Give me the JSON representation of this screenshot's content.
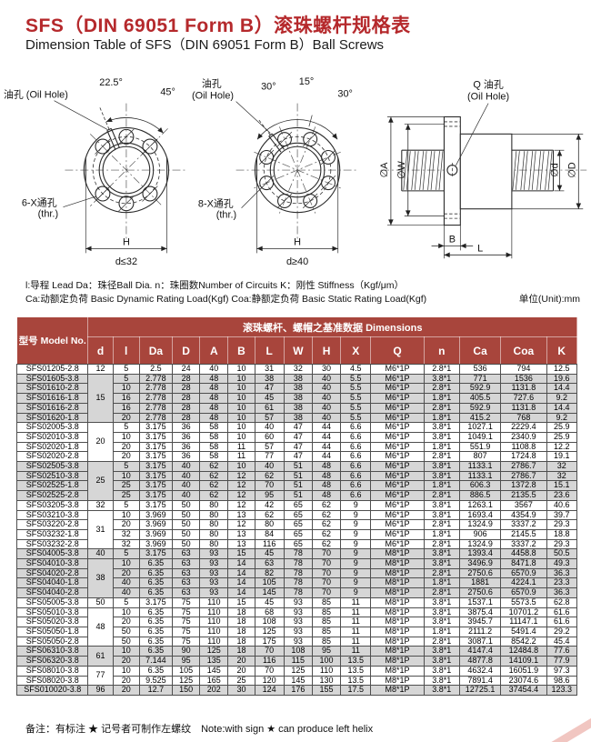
{
  "header": {
    "title_zh": "SFS（DIN 69051 Form B）滚珠螺杆规格表",
    "title_en": "Dimension Table of SFS（DIN 69051 Form B）Ball Screws"
  },
  "diagrams": {
    "d1": {
      "oil_hole": "油孔 (Oil Hole)",
      "angle_a": "22.5°",
      "angle_b": "45°",
      "holes": "6-X通孔",
      "thr": "(thr.)",
      "h": "H",
      "cond": "d≤32"
    },
    "d2": {
      "oil_hole_zh": "油孔",
      "oil_hole_en": "(Oil Hole)",
      "angle_a": "30°",
      "angle_b": "15°",
      "angle_c": "30°",
      "holes": "8-X通孔",
      "thr": "(thr.)",
      "h": "H",
      "cond": "d≥40"
    },
    "d3": {
      "oil_hole_q": "Q 油孔",
      "oil_hole_en": "(Oil Hole)",
      "dia_a": "∅A",
      "dia_w": "∅W",
      "dia_d_small": "∅d",
      "dia_d_big": "∅D",
      "b": "B",
      "l": "L"
    }
  },
  "legend": {
    "line1": "l:导程 Lead  Da：珠径Ball Dia.  n：珠圈数Number of Circuits  K：刚性 Stiffness（Kgf/μm）",
    "line2": "Ca:动额定负荷 Basic Dynamic Rating Load(Kgf)  Coa:静额定负荷 Basic Static Rating Load(Kgf)",
    "unit": "单位(Unit):mm"
  },
  "table": {
    "model_header": "型号 Model No.",
    "group_header": "滚珠螺杆、螺帽之基准数据  Dimensions",
    "columns": [
      "d",
      "l",
      "Da",
      "D",
      "A",
      "B",
      "L",
      "W",
      "H",
      "X",
      "Q",
      "n",
      "Ca",
      "Coa",
      "K"
    ],
    "rows": [
      {
        "model": "SFS01205-2.8",
        "d": "12",
        "span": 1,
        "g": 0,
        "v": [
          "5",
          "2.5",
          "24",
          "40",
          "10",
          "31",
          "32",
          "30",
          "4.5",
          "M6*1P",
          "2.8*1",
          "536",
          "794",
          "12.5"
        ]
      },
      {
        "model": "SFS01605-3.8",
        "d": "15",
        "span": 5,
        "g": 1,
        "v": [
          "5",
          "2.778",
          "28",
          "48",
          "10",
          "38",
          "38",
          "40",
          "5.5",
          "M6*1P",
          "3.8*1",
          "771",
          "1536",
          "19.6"
        ]
      },
      {
        "model": "SFS01610-2.8",
        "g": 1,
        "v": [
          "10",
          "2.778",
          "28",
          "48",
          "10",
          "47",
          "38",
          "40",
          "5.5",
          "M6*1P",
          "2.8*1",
          "592.9",
          "1131.8",
          "14.4"
        ]
      },
      {
        "model": "SFS01616-1.8",
        "g": 1,
        "v": [
          "16",
          "2.778",
          "28",
          "48",
          "10",
          "45",
          "38",
          "40",
          "5.5",
          "M6*1P",
          "1.8*1",
          "405.5",
          "727.6",
          "9.2"
        ]
      },
      {
        "model": "SFS01616-2.8",
        "g": 1,
        "v": [
          "16",
          "2.778",
          "28",
          "48",
          "10",
          "61",
          "38",
          "40",
          "5.5",
          "M6*1P",
          "2.8*1",
          "592.9",
          "1131.8",
          "14.4"
        ]
      },
      {
        "model": "SFS01620-1.8",
        "g": 1,
        "v": [
          "20",
          "2.778",
          "28",
          "48",
          "10",
          "57",
          "38",
          "40",
          "5.5",
          "M6*1P",
          "1.8*1",
          "415.2",
          "768",
          "9.2"
        ]
      },
      {
        "model": "SFS02005-3.8",
        "d": "20",
        "span": 4,
        "g": 2,
        "v": [
          "5",
          "3.175",
          "36",
          "58",
          "10",
          "40",
          "47",
          "44",
          "6.6",
          "M6*1P",
          "3.8*1",
          "1027.1",
          "2229.4",
          "25.9"
        ]
      },
      {
        "model": "SFS02010-3.8",
        "g": 2,
        "v": [
          "10",
          "3.175",
          "36",
          "58",
          "10",
          "60",
          "47",
          "44",
          "6.6",
          "M6*1P",
          "3.8*1",
          "1049.1",
          "2340.9",
          "25.9"
        ]
      },
      {
        "model": "SFS02020-1.8",
        "g": 2,
        "v": [
          "20",
          "3.175",
          "36",
          "58",
          "11",
          "57",
          "47",
          "44",
          "6.6",
          "M6*1P",
          "1.8*1",
          "551.9",
          "1108.8",
          "12.2"
        ]
      },
      {
        "model": "SFS02020-2.8",
        "g": 2,
        "v": [
          "20",
          "3.175",
          "36",
          "58",
          "11",
          "77",
          "47",
          "44",
          "6.6",
          "M6*1P",
          "2.8*1",
          "807",
          "1724.8",
          "19.1"
        ]
      },
      {
        "model": "SFS02505-3.8",
        "d": "25",
        "span": 4,
        "g": 3,
        "v": [
          "5",
          "3.175",
          "40",
          "62",
          "10",
          "40",
          "51",
          "48",
          "6.6",
          "M6*1P",
          "3.8*1",
          "1133.1",
          "2786.7",
          "32"
        ]
      },
      {
        "model": "SFS02510-3.8",
        "g": 3,
        "v": [
          "10",
          "3.175",
          "40",
          "62",
          "12",
          "62",
          "51",
          "48",
          "6.6",
          "M6*1P",
          "3.8*1",
          "1133.1",
          "2786.7",
          "32"
        ]
      },
      {
        "model": "SFS02525-1.8",
        "g": 3,
        "v": [
          "25",
          "3.175",
          "40",
          "62",
          "12",
          "70",
          "51",
          "48",
          "6.6",
          "M6*1P",
          "1.8*1",
          "606.3",
          "1372.8",
          "15.1"
        ]
      },
      {
        "model": "SFS02525-2.8",
        "g": 3,
        "v": [
          "25",
          "3.175",
          "40",
          "62",
          "12",
          "95",
          "51",
          "48",
          "6.6",
          "M6*1P",
          "2.8*1",
          "886.5",
          "2135.5",
          "23.6"
        ]
      },
      {
        "model": "SFS03205-3.8",
        "d": "32",
        "span": 1,
        "g": 4,
        "v": [
          "5",
          "3.175",
          "50",
          "80",
          "12",
          "42",
          "65",
          "62",
          "9",
          "M6*1P",
          "3.8*1",
          "1263.1",
          "3567",
          "40.6"
        ]
      },
      {
        "model": "SFS03210-3.8",
        "d": "31",
        "span": 4,
        "g": 4,
        "v": [
          "10",
          "3.969",
          "50",
          "80",
          "13",
          "62",
          "65",
          "62",
          "9",
          "M6*1P",
          "3.8*1",
          "1693.4",
          "4354.9",
          "39.7"
        ]
      },
      {
        "model": "SFS03220-2.8",
        "g": 4,
        "v": [
          "20",
          "3.969",
          "50",
          "80",
          "12",
          "80",
          "65",
          "62",
          "9",
          "M6*1P",
          "2.8*1",
          "1324.9",
          "3337.2",
          "29.3"
        ]
      },
      {
        "model": "SFS03232-1.8",
        "g": 4,
        "v": [
          "32",
          "3.969",
          "50",
          "80",
          "13",
          "84",
          "65",
          "62",
          "9",
          "M6*1P",
          "1.8*1",
          "906",
          "2145.5",
          "18.8"
        ]
      },
      {
        "model": "SFS03232-2.8",
        "g": 4,
        "v": [
          "32",
          "3.969",
          "50",
          "80",
          "13",
          "116",
          "65",
          "62",
          "9",
          "M6*1P",
          "2.8*1",
          "1324.9",
          "3337.2",
          "29.3"
        ]
      },
      {
        "model": "SFS04005-3.8",
        "d": "40",
        "span": 1,
        "g": 5,
        "v": [
          "5",
          "3.175",
          "63",
          "93",
          "15",
          "45",
          "78",
          "70",
          "9",
          "M8*1P",
          "3.8*1",
          "1393.4",
          "4458.8",
          "50.5"
        ]
      },
      {
        "model": "SFS04010-3.8",
        "d": "38",
        "span": 4,
        "g": 5,
        "v": [
          "10",
          "6.35",
          "63",
          "93",
          "14",
          "63",
          "78",
          "70",
          "9",
          "M8*1P",
          "3.8*1",
          "3496.9",
          "8471.8",
          "49.3"
        ]
      },
      {
        "model": "SFS04020-2.8",
        "g": 5,
        "v": [
          "20",
          "6.35",
          "63",
          "93",
          "14",
          "82",
          "78",
          "70",
          "9",
          "M8*1P",
          "2.8*1",
          "2750.6",
          "6570.9",
          "36.3"
        ]
      },
      {
        "model": "SFS04040-1.8",
        "g": 5,
        "v": [
          "40",
          "6.35",
          "63",
          "93",
          "14",
          "105",
          "78",
          "70",
          "9",
          "M8*1P",
          "1.8*1",
          "1881",
          "4224.1",
          "23.3"
        ]
      },
      {
        "model": "SFS04040-2.8",
        "g": 5,
        "v": [
          "40",
          "6.35",
          "63",
          "93",
          "14",
          "145",
          "78",
          "70",
          "9",
          "M8*1P",
          "2.8*1",
          "2750.6",
          "6570.9",
          "36.3"
        ]
      },
      {
        "model": "SFS05005-3.8",
        "d": "50",
        "span": 1,
        "g": 6,
        "v": [
          "5",
          "3.175",
          "75",
          "110",
          "15",
          "45",
          "93",
          "85",
          "11",
          "M8*1P",
          "3.8*1",
          "1537.1",
          "5573.5",
          "62.8"
        ]
      },
      {
        "model": "SFS05010-3.8",
        "d": "48",
        "span": 4,
        "g": 6,
        "v": [
          "10",
          "6.35",
          "75",
          "110",
          "18",
          "68",
          "93",
          "85",
          "11",
          "M8*1P",
          "3.8*1",
          "3875.4",
          "10701.2",
          "61.6"
        ]
      },
      {
        "model": "SFS05020-3.8",
        "g": 6,
        "v": [
          "20",
          "6.35",
          "75",
          "110",
          "18",
          "108",
          "93",
          "85",
          "11",
          "M8*1P",
          "3.8*1",
          "3945.7",
          "11147.1",
          "61.6"
        ]
      },
      {
        "model": "SFS05050-1.8",
        "g": 6,
        "v": [
          "50",
          "6.35",
          "75",
          "110",
          "18",
          "125",
          "93",
          "85",
          "11",
          "M8*1P",
          "1.8*1",
          "2111.2",
          "5491.4",
          "29.2"
        ]
      },
      {
        "model": "SFS05050-2.8",
        "g": 6,
        "v": [
          "50",
          "6.35",
          "75",
          "110",
          "18",
          "175",
          "93",
          "85",
          "11",
          "M8*1P",
          "2.8*1",
          "3087.1",
          "8542.2",
          "45.4"
        ]
      },
      {
        "model": "SFS06310-3.8",
        "d": "61",
        "span": 2,
        "g": 7,
        "v": [
          "10",
          "6.35",
          "90",
          "125",
          "18",
          "70",
          "108",
          "95",
          "11",
          "M8*1P",
          "3.8*1",
          "4147.4",
          "12484.8",
          "77.6"
        ]
      },
      {
        "model": "SFS06320-3.8",
        "g": 7,
        "v": [
          "20",
          "7.144",
          "95",
          "135",
          "20",
          "116",
          "115",
          "100",
          "13.5",
          "M8*1P",
          "3.8*1",
          "4877.8",
          "14109.1",
          "77.9"
        ]
      },
      {
        "model": "SFS08010-3.8",
        "d": "77",
        "span": 2,
        "g": 8,
        "v": [
          "10",
          "6.35",
          "105",
          "145",
          "20",
          "70",
          "125",
          "110",
          "13.5",
          "M8*1P",
          "3.8*1",
          "4632.4",
          "16051.9",
          "97.3"
        ]
      },
      {
        "model": "SFS08020-3.8",
        "g": 8,
        "v": [
          "20",
          "9.525",
          "125",
          "165",
          "25",
          "120",
          "145",
          "130",
          "13.5",
          "M8*1P",
          "3.8*1",
          "7891.4",
          "23074.6",
          "98.6"
        ]
      },
      {
        "model": "SFS010020-3.8",
        "d": "96",
        "span": 1,
        "g": 9,
        "v": [
          "20",
          "12.7",
          "150",
          "202",
          "30",
          "124",
          "176",
          "155",
          "17.5",
          "M8*1P",
          "3.8*1",
          "12725.1",
          "37454.4",
          "123.3"
        ]
      }
    ]
  },
  "note": "备注：有标注 ★ 记号者可制作左螺纹　Note:with sign ★ can produce left helix",
  "colors": {
    "title_red": "#b5292c",
    "header_bg": "#a8453c",
    "row_gray": "#d6d6d6"
  }
}
